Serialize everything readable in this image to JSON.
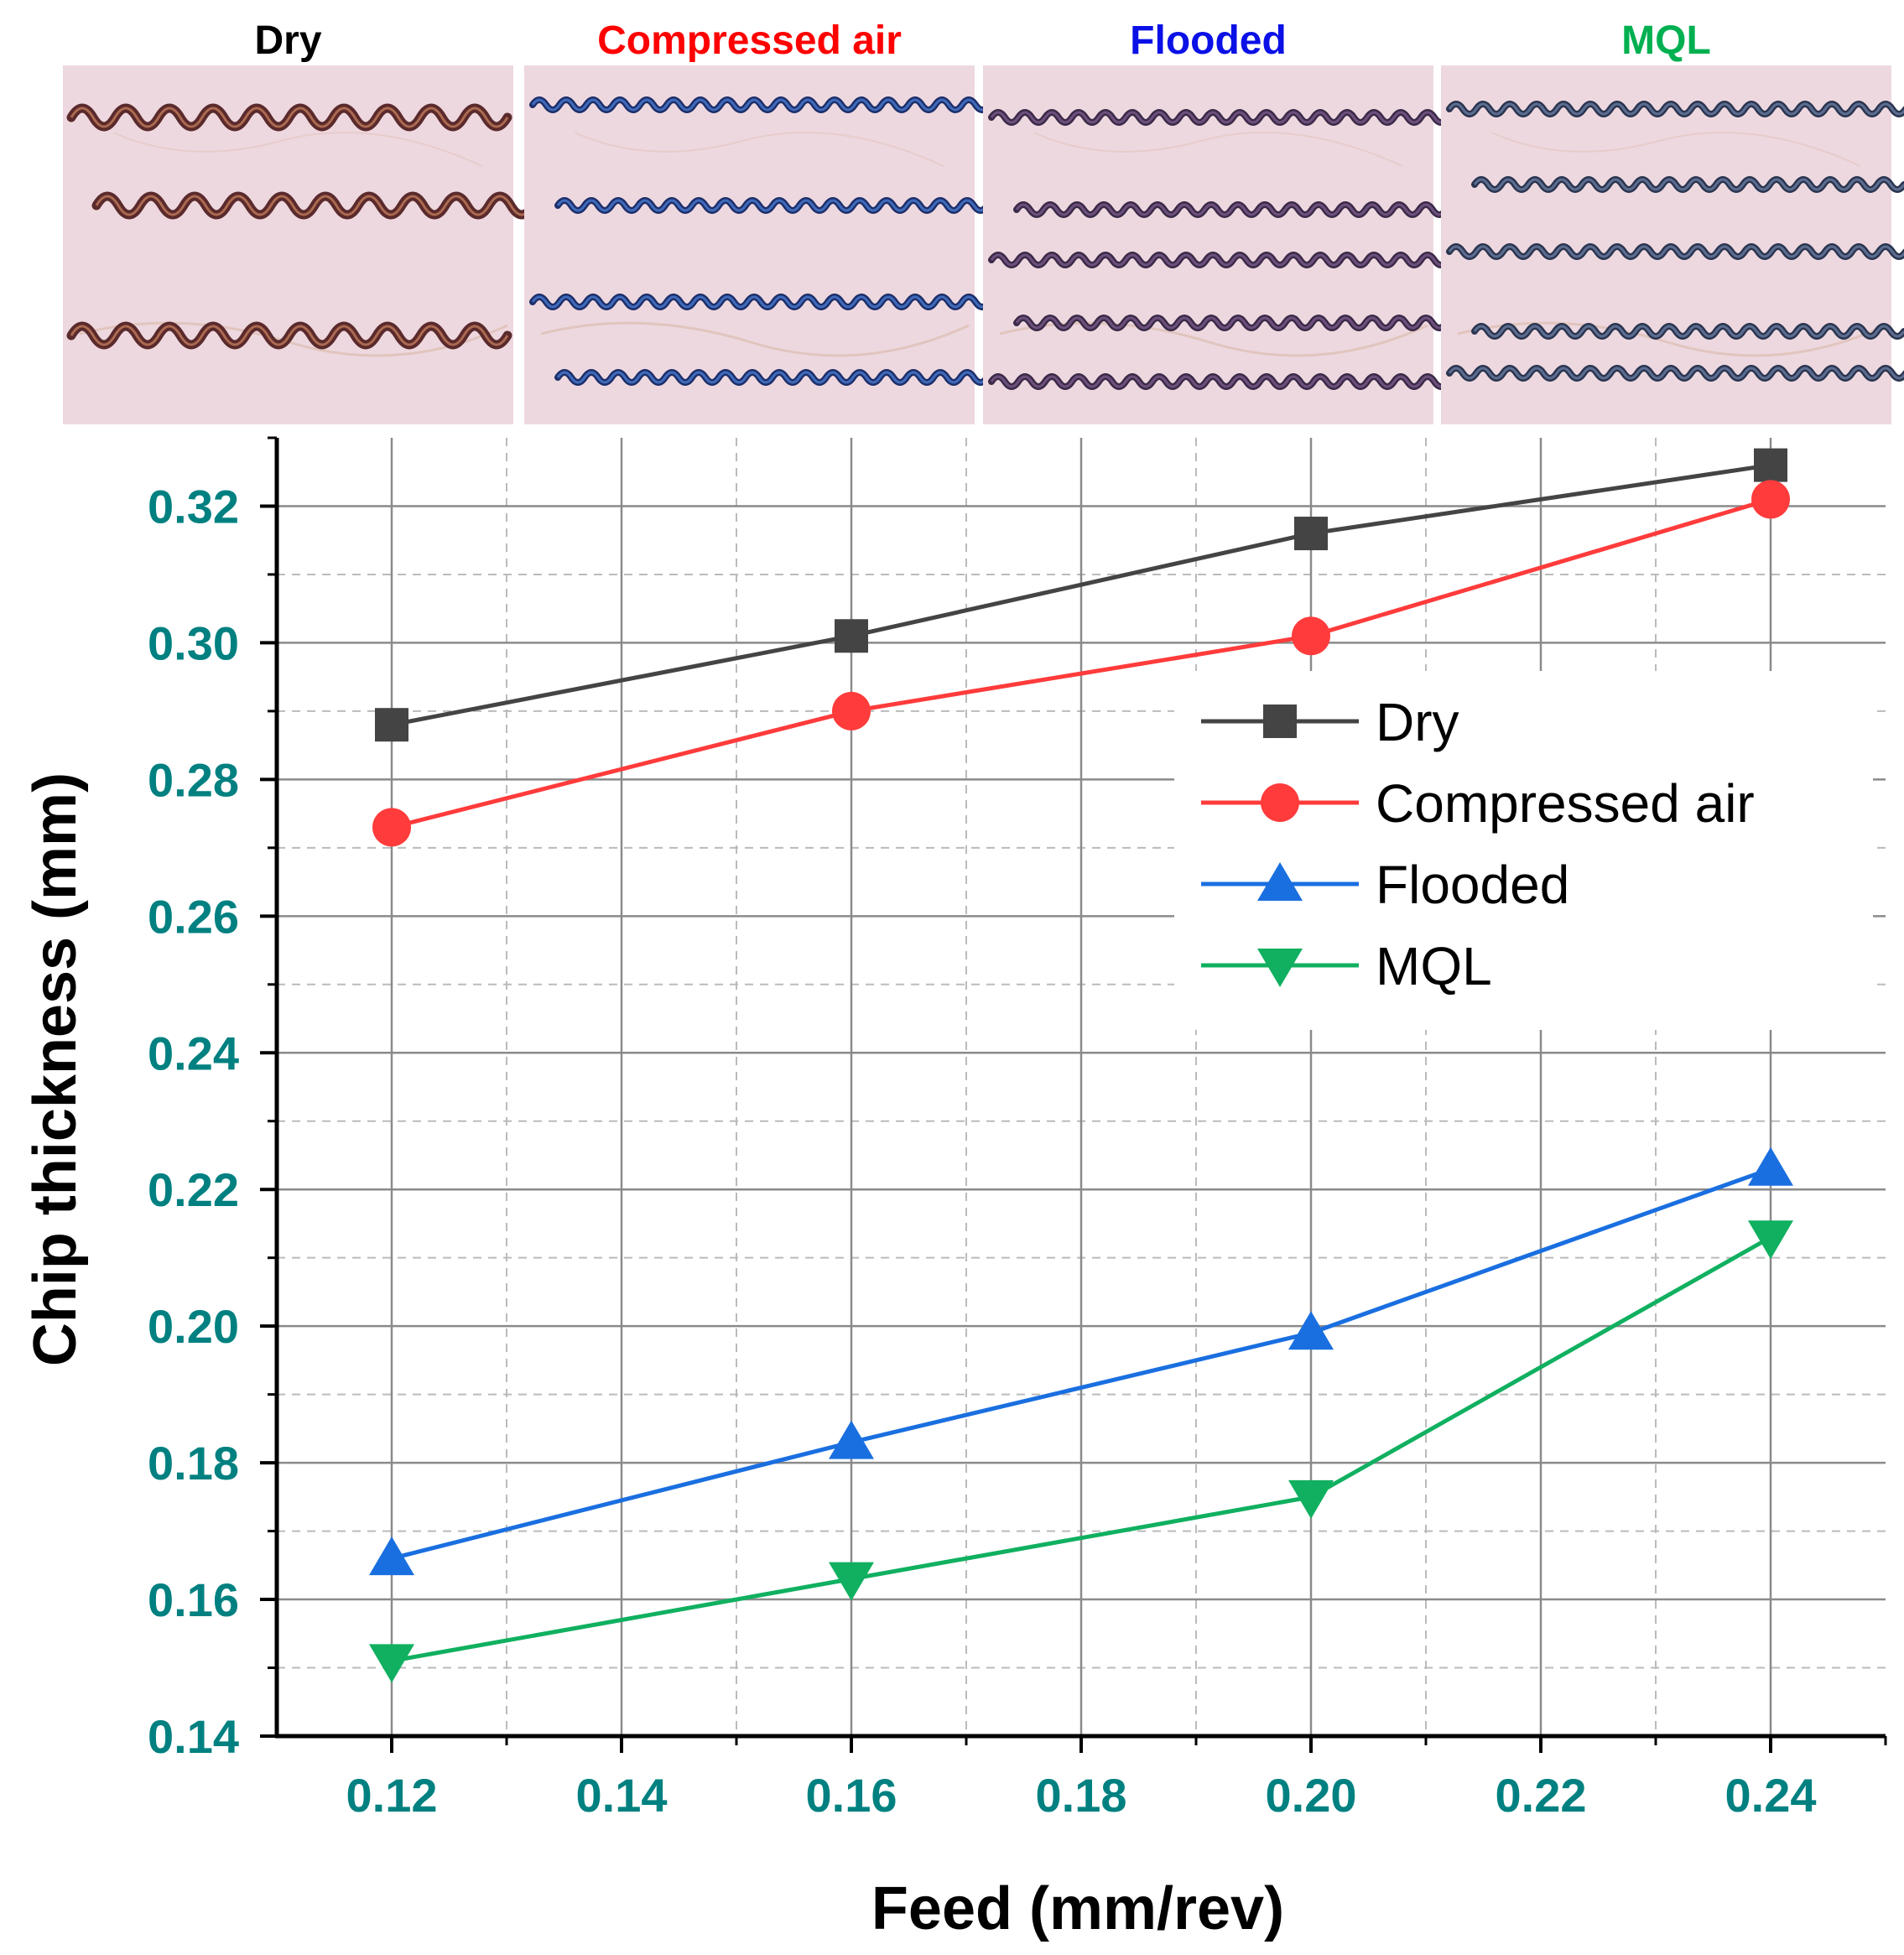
{
  "photo_panels": [
    {
      "title": "Dry",
      "color": "#000000",
      "chip_color": "#5a2a2c",
      "chip_highlight": "#c07a5a"
    },
    {
      "title": "Compressed air",
      "color": "#ff0000",
      "chip_color": "#1d2f6a",
      "chip_highlight": "#4a7ad0"
    },
    {
      "title": "Flooded",
      "color": "#0a10e6",
      "chip_color": "#3a2a48",
      "chip_highlight": "#7a5a8a"
    },
    {
      "title": "MQL",
      "color": "#00b050",
      "chip_color": "#2a3550",
      "chip_highlight": "#6a7ca0"
    }
  ],
  "chart_data": {
    "type": "line",
    "x": [
      0.12,
      0.16,
      0.2,
      0.24
    ],
    "series": [
      {
        "name": "Dry",
        "values": [
          0.288,
          0.301,
          0.316,
          0.326
        ],
        "color": "#444444",
        "marker": "square"
      },
      {
        "name": "Compressed air",
        "values": [
          0.273,
          0.29,
          0.301,
          0.321
        ],
        "color": "#ff3b3b",
        "marker": "circle"
      },
      {
        "name": "Flooded",
        "values": [
          0.166,
          0.183,
          0.199,
          0.223
        ],
        "color": "#1a6fe0",
        "marker": "triangle-up"
      },
      {
        "name": "MQL",
        "values": [
          0.151,
          0.163,
          0.175,
          0.213
        ],
        "color": "#10b060",
        "marker": "triangle-down"
      }
    ],
    "xlabel": "Feed (mm/rev)",
    "ylabel": "Chip thickness (mm)",
    "xlim": [
      0.11,
      0.25
    ],
    "ylim": [
      0.14,
      0.33
    ],
    "x_ticks": [
      "0.12",
      "0.14",
      "0.16",
      "0.18",
      "0.20",
      "0.22",
      "0.24"
    ],
    "y_ticks": [
      "0.14",
      "0.16",
      "0.18",
      "0.20",
      "0.22",
      "0.24",
      "0.26",
      "0.28",
      "0.30",
      "0.32"
    ],
    "tick_color": "#008080",
    "grid": true,
    "legend_position": "center-right"
  }
}
